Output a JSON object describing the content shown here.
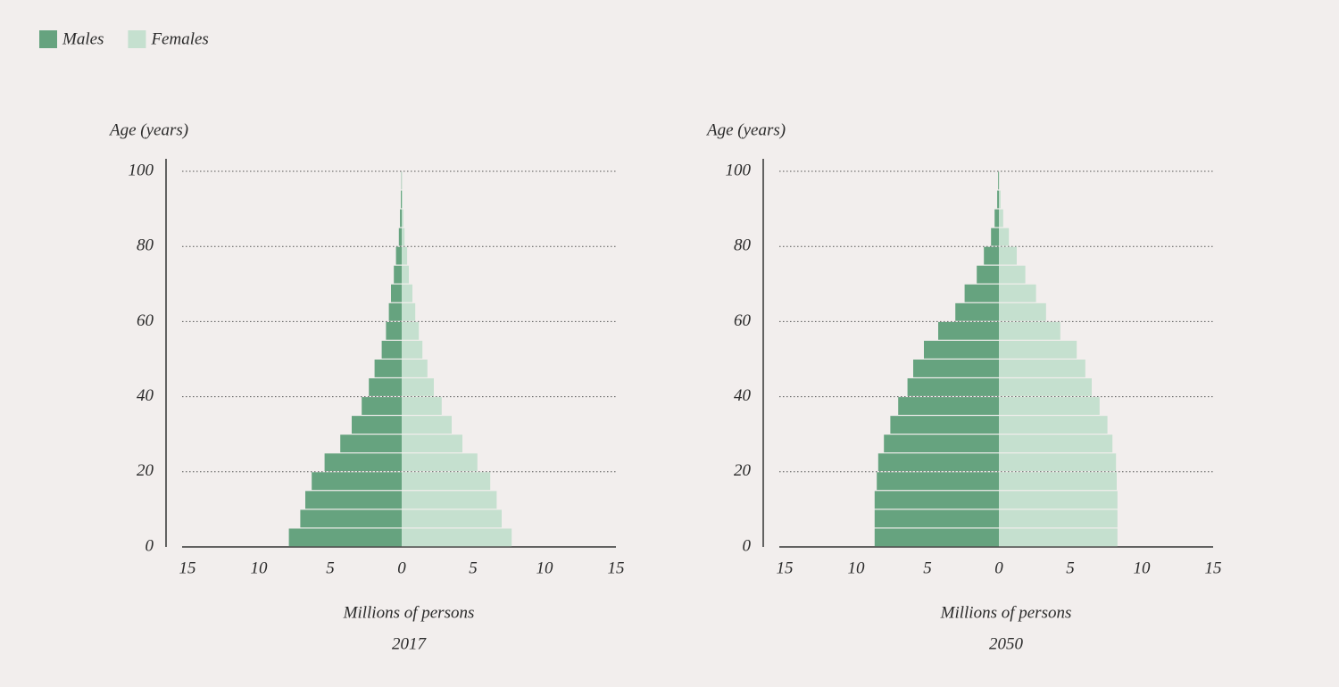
{
  "chart_data": [
    {
      "type": "pyramid",
      "title": "2017",
      "xlabel": "Millions of persons",
      "ylabel": "Age (years)",
      "xlim": [
        -15,
        15
      ],
      "xticks": [
        {
          "value": -15,
          "label": "15"
        },
        {
          "value": -10,
          "label": "10"
        },
        {
          "value": -5,
          "label": "5"
        },
        0,
        5,
        10,
        15
      ],
      "ylim": [
        0,
        100
      ],
      "yticks": [
        0,
        20,
        40,
        60,
        80,
        100
      ],
      "grid": true,
      "series": [
        {
          "name": "Males",
          "color": "#66a37f",
          "values": [
            -7.9,
            -7.1,
            -6.75,
            -6.3,
            -5.4,
            -4.3,
            -3.5,
            -2.8,
            -2.3,
            -1.9,
            -1.4,
            -1.1,
            -0.9,
            -0.75,
            -0.55,
            -0.4,
            -0.2,
            -0.12,
            -0.06,
            -0.02
          ]
        },
        {
          "name": "Females",
          "color": "#c5e0cf",
          "values": [
            7.7,
            7.0,
            6.65,
            6.2,
            5.3,
            4.25,
            3.5,
            2.8,
            2.25,
            1.8,
            1.45,
            1.2,
            0.95,
            0.75,
            0.5,
            0.38,
            0.2,
            0.12,
            0.06,
            0.03
          ]
        }
      ]
    },
    {
      "type": "pyramid",
      "title": "2050",
      "xlabel": "Millions of persons",
      "ylabel": "Age (years)",
      "xlim": [
        -15,
        15
      ],
      "xticks": [
        {
          "value": -15,
          "label": "15"
        },
        {
          "value": -10,
          "label": "10"
        },
        {
          "value": -5,
          "label": "5"
        },
        0,
        5,
        10,
        15
      ],
      "ylim": [
        0,
        100
      ],
      "yticks": [
        0,
        20,
        40,
        60,
        80,
        100
      ],
      "grid": true,
      "series": [
        {
          "color": "#66a37f",
          "values": [
            -8.7,
            -8.7,
            -8.7,
            -8.55,
            -8.45,
            -8.05,
            -7.6,
            -7.05,
            -6.4,
            -6.0,
            -5.25,
            -4.25,
            -3.05,
            -2.4,
            -1.55,
            -1.05,
            -0.55,
            -0.3,
            -0.12,
            -0.05
          ]
        },
        {
          "color": "#c5e0cf",
          "values": [
            8.3,
            8.3,
            8.3,
            8.25,
            8.2,
            7.95,
            7.6,
            7.05,
            6.5,
            6.05,
            5.45,
            4.3,
            3.3,
            2.6,
            1.85,
            1.25,
            0.7,
            0.3,
            0.12,
            0.03
          ]
        }
      ]
    }
  ]
}
